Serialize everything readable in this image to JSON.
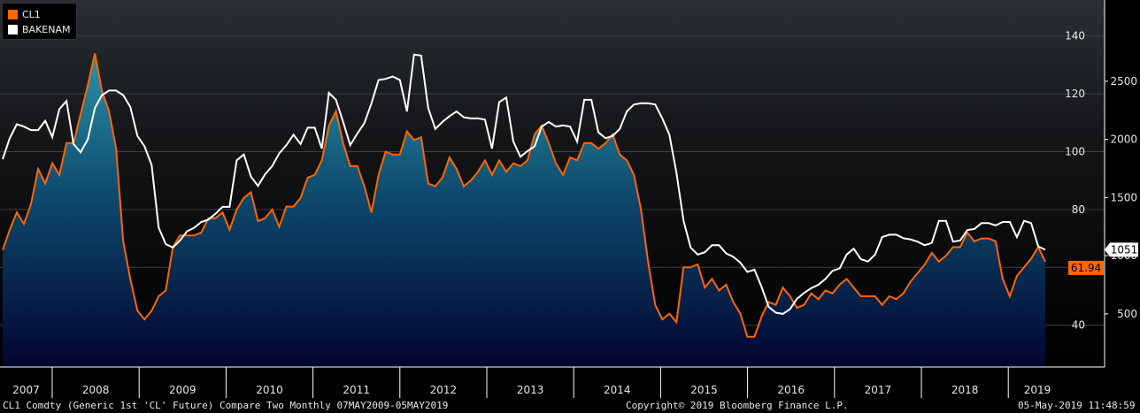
{
  "chart_data": {
    "type": "line",
    "series": [
      {
        "name": "CL1",
        "axis": "left",
        "color": "#ff6600",
        "last_value_label": "61.94",
        "values": [
          66,
          73,
          79,
          75,
          82,
          94,
          89,
          96,
          92,
          103,
          103,
          113,
          123,
          134,
          121,
          114,
          101,
          69,
          56,
          45,
          42,
          45,
          50,
          52,
          67,
          71,
          71,
          71,
          72,
          77,
          77,
          79,
          73,
          80,
          84,
          86,
          76,
          77,
          80,
          74,
          81,
          81,
          84,
          91,
          92,
          97,
          109,
          114,
          103,
          95,
          95,
          88,
          79,
          92,
          100,
          99,
          99,
          107,
          104,
          105,
          89,
          88,
          91,
          98,
          94,
          88,
          90,
          93,
          97,
          92,
          97,
          93,
          96,
          95,
          97,
          106,
          109,
          103,
          96,
          92,
          98,
          97,
          103,
          103,
          101,
          103,
          106,
          99,
          97,
          92,
          80,
          62,
          47,
          42,
          44,
          41,
          60,
          60,
          61,
          53,
          56,
          52,
          54,
          48,
          44,
          36,
          36,
          43,
          48,
          47,
          53,
          50,
          46,
          47,
          51,
          49,
          52,
          51,
          54,
          56,
          53,
          50,
          50,
          50,
          47,
          50,
          49,
          51,
          55,
          58,
          61,
          65,
          62,
          64,
          67,
          67,
          72,
          69,
          70,
          70,
          69,
          56,
          50,
          57,
          60,
          63,
          67,
          61.94
        ]
      },
      {
        "name": "BAKENAM",
        "axis": "right",
        "color": "#ffffff",
        "last_value_label": "1051",
        "values": [
          1830,
          2010,
          2130,
          2110,
          2080,
          2080,
          2160,
          2020,
          2260,
          2330,
          1960,
          1890,
          2000,
          2270,
          2380,
          2420,
          2420,
          2380,
          2280,
          2030,
          1940,
          1780,
          1240,
          1100,
          1070,
          1130,
          1210,
          1240,
          1290,
          1310,
          1360,
          1420,
          1420,
          1820,
          1870,
          1680,
          1600,
          1700,
          1770,
          1880,
          1950,
          2040,
          1960,
          2100,
          2100,
          1920,
          2400,
          2340,
          2150,
          1950,
          2050,
          2140,
          2310,
          2510,
          2520,
          2540,
          2510,
          2240,
          2730,
          2720,
          2270,
          2090,
          2150,
          2200,
          2240,
          2190,
          2180,
          2180,
          2170,
          1920,
          2320,
          2360,
          1980,
          1850,
          1900,
          1940,
          2110,
          2150,
          2110,
          2120,
          2110,
          1980,
          2340,
          2340,
          2060,
          2010,
          2030,
          2090,
          2240,
          2300,
          2310,
          2310,
          2300,
          2180,
          2040,
          1710,
          1300,
          1070,
          1010,
          1030,
          1090,
          1090,
          1020,
          990,
          940,
          860,
          880,
          730,
          560,
          510,
          500,
          540,
          630,
          680,
          720,
          750,
          800,
          870,
          890,
          1010,
          1060,
          970,
          950,
          1010,
          1160,
          1180,
          1180,
          1150,
          1140,
          1120,
          1090,
          1110,
          1300,
          1300,
          1120,
          1130,
          1220,
          1230,
          1280,
          1280,
          1260,
          1290,
          1290,
          1160,
          1300,
          1280,
          1080,
          1051
        ]
      }
    ],
    "x": {
      "labels": [
        "2007",
        "2008",
        "2009",
        "2010",
        "2011",
        "2012",
        "2013",
        "2014",
        "2015",
        "2016",
        "2017",
        "2018",
        "2019"
      ]
    },
    "y_left": {
      "ticks": [
        40,
        60,
        80,
        100,
        120,
        140
      ],
      "range": [
        23,
        150
      ]
    },
    "y_right": {
      "ticks": [
        500,
        1000,
        1500,
        2000,
        2500
      ],
      "range": [
        150,
        2800
      ]
    },
    "grid": true
  },
  "legend": {
    "items": [
      {
        "label": "CL1",
        "color": "#ff6600"
      },
      {
        "label": "BAKENAM",
        "color": "#ffffff"
      }
    ]
  },
  "footer": {
    "left": "CL1 Comdty (Generic 1st 'CL' Future) Compare Two  Monthly 07MAY2009-05MAY2019",
    "center": "Copyright© 2019 Bloomberg Finance L.P.",
    "right": "05-May-2019 11:48:59"
  },
  "colors": {
    "background": "#000000",
    "grid": "#444444",
    "area_top": "#1f7f97",
    "area_bottom": "#02063a"
  }
}
